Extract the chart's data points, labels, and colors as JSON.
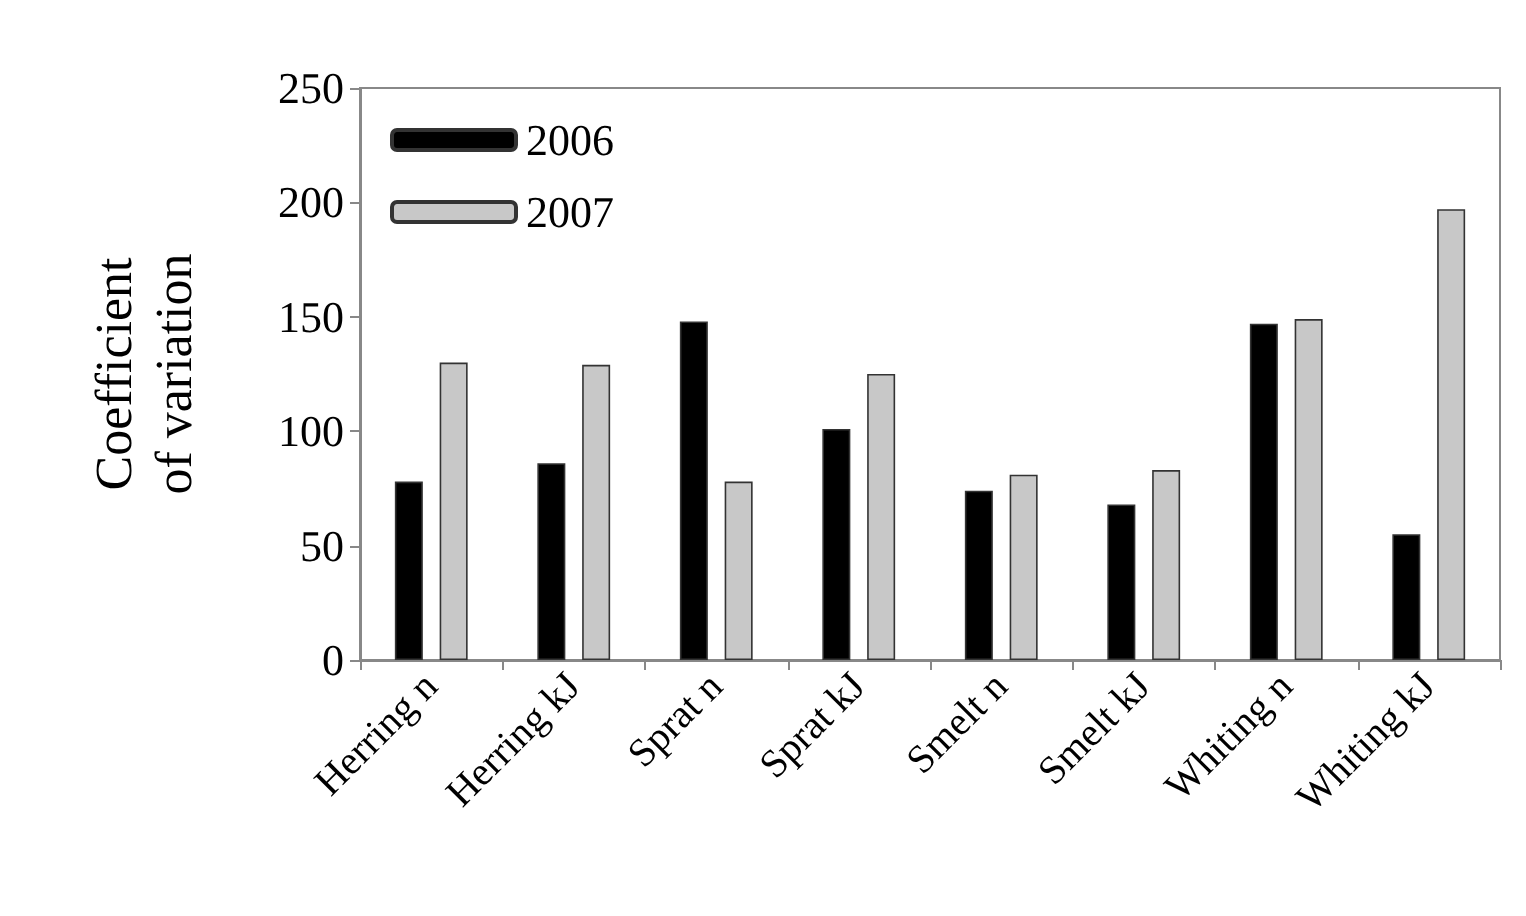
{
  "chart_data": {
    "type": "bar",
    "ylabel": "Coefficient\nof variation",
    "categories": [
      "Herring n",
      "Herring kJ",
      "Sprat n",
      "Sprat kJ",
      "Smelt n",
      "Smelt kJ",
      "Whiting n",
      "Whiting kJ"
    ],
    "series": [
      {
        "name": "2006",
        "color": "#000000",
        "values": [
          78,
          86,
          148,
          101,
          74,
          68,
          147,
          55
        ]
      },
      {
        "name": "2007",
        "color": "#c8c8c8",
        "values": [
          130,
          129,
          78,
          125,
          81,
          83,
          149,
          197
        ]
      }
    ],
    "ylim": [
      0,
      250
    ],
    "yticks": [
      0,
      50,
      100,
      150,
      200,
      250
    ],
    "grid": false,
    "legend": "top left"
  }
}
